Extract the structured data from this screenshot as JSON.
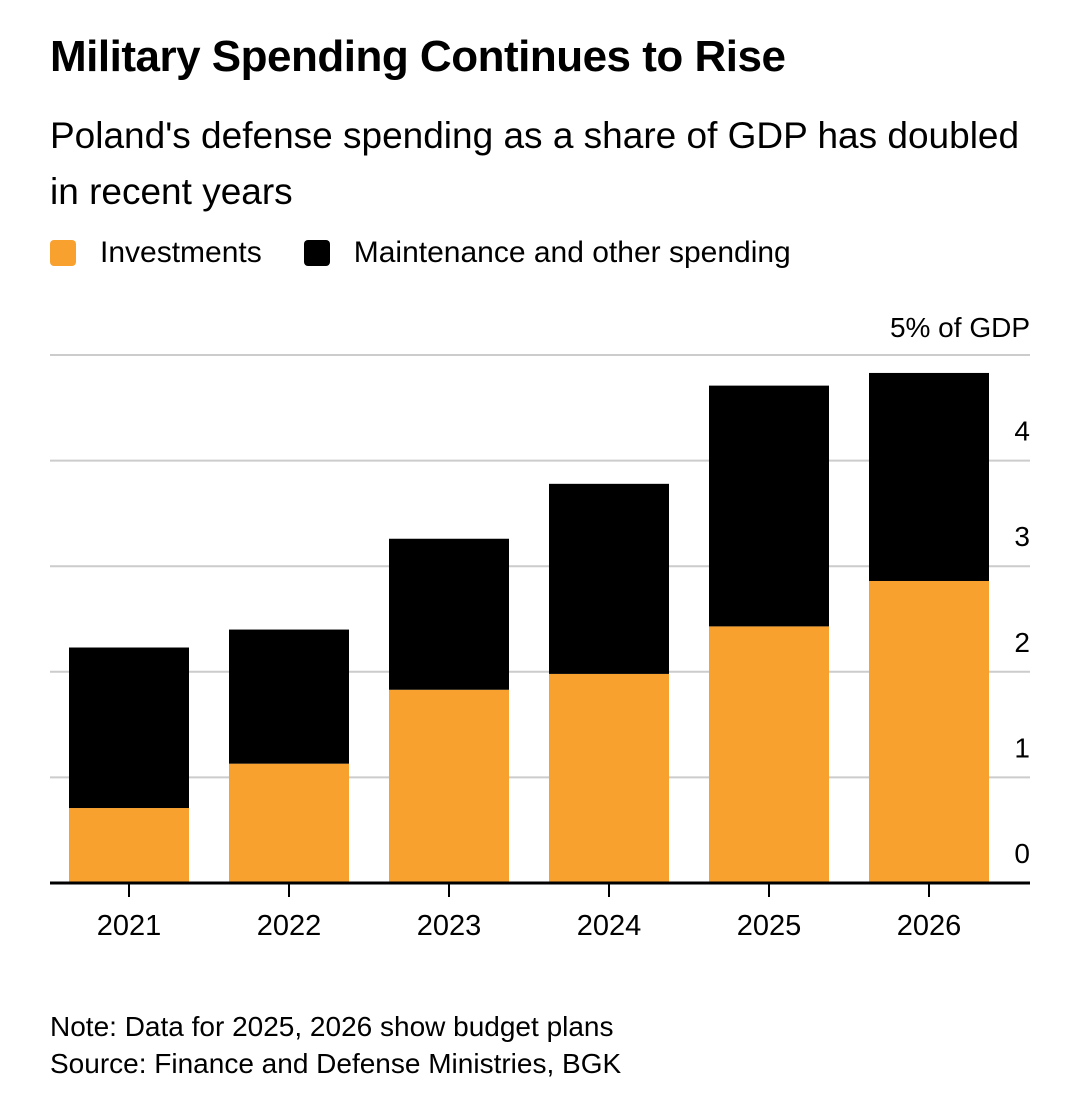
{
  "header": {
    "title": "Military Spending Continues to Rise",
    "subtitle": "Poland's defense spending as a share of GDP has doubled in recent years"
  },
  "footer": {
    "note": "Note: Data for 2025, 2026 show budget plans",
    "source": "Source: Finance and Defense Ministries, BGK"
  },
  "chart_data": {
    "type": "bar",
    "stacked": true,
    "title": "Military Spending Continues to Rise",
    "subtitle": "Poland's defense spending as a share of GDP has doubled in recent years",
    "categories": [
      "2021",
      "2022",
      "2023",
      "2024",
      "2025",
      "2026"
    ],
    "series": [
      {
        "name": "Investments",
        "color": "#f9a12e",
        "values": [
          0.71,
          1.13,
          1.83,
          1.98,
          2.43,
          2.86
        ]
      },
      {
        "name": "Maintenance and other spending",
        "color": "#000000",
        "values": [
          1.52,
          1.27,
          1.43,
          1.8,
          2.28,
          1.97
        ]
      }
    ],
    "ylim": [
      0,
      5
    ],
    "yticks": [
      "0",
      "1",
      "2",
      "3",
      "4",
      "5% of GDP"
    ],
    "yaxis_position": "right",
    "grid": true,
    "legend": "top-left"
  }
}
